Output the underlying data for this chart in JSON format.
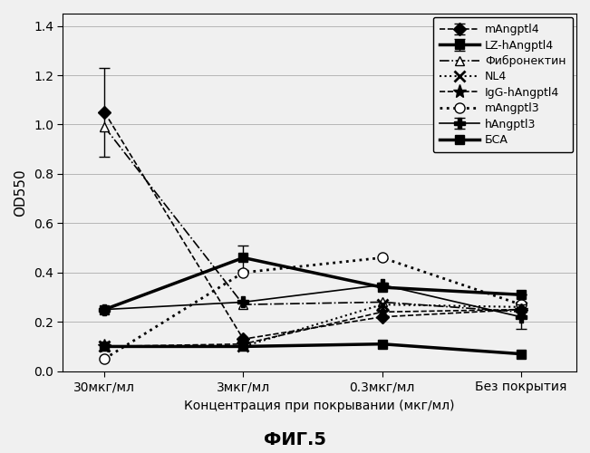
{
  "x_labels": [
    "30мкг/мл",
    "3мкг/мл",
    "0.3мкг/мл",
    "Без покрытия"
  ],
  "x_positions": [
    0,
    1,
    2,
    3
  ],
  "xlabel": "Концентрация при покрывании (мкг/мл)",
  "ylabel": "OD550",
  "title": "ФИГ.5",
  "ylim": [
    0.0,
    1.45
  ],
  "yticks": [
    0.0,
    0.2,
    0.4,
    0.6,
    0.8,
    1.0,
    1.2,
    1.4
  ],
  "series": {
    "mAngptl4": {
      "values": [
        1.05,
        0.13,
        0.22,
        0.25
      ],
      "yerr": [
        0.18,
        0.0,
        0.0,
        0.0
      ],
      "linestyle": "--",
      "linewidth": 1.2,
      "marker": "D",
      "markersize": 7,
      "markerfacecolor": "black",
      "color": "black"
    },
    "LZ-hAngptl4": {
      "values": [
        0.25,
        0.46,
        0.34,
        0.31
      ],
      "yerr": [
        0.0,
        0.05,
        0.0,
        0.0
      ],
      "linestyle": "-",
      "linewidth": 2.5,
      "marker": "s",
      "markersize": 7,
      "markerfacecolor": "black",
      "color": "black"
    },
    "Фибронектин": {
      "values": [
        0.99,
        0.27,
        0.28,
        0.24
      ],
      "yerr": [
        0.0,
        0.0,
        0.0,
        0.0
      ],
      "linestyle": "-.",
      "linewidth": 1.2,
      "marker": "^",
      "markersize": 7,
      "markerfacecolor": "white",
      "color": "black"
    },
    "NL4": {
      "values": [
        0.1,
        0.1,
        0.27,
        0.26
      ],
      "yerr": [
        0.0,
        0.0,
        0.0,
        0.0
      ],
      "linestyle": ":",
      "linewidth": 1.5,
      "marker": "x",
      "markersize": 8,
      "markerfacecolor": "black",
      "color": "black",
      "markeredgewidth": 2.0
    },
    "IgG-hAngptl4": {
      "values": [
        0.1,
        0.11,
        0.24,
        0.25
      ],
      "yerr": [
        0.0,
        0.0,
        0.0,
        0.0
      ],
      "linestyle": "--",
      "linewidth": 1.2,
      "marker": "*",
      "markersize": 11,
      "markerfacecolor": "black",
      "color": "black",
      "markeredgewidth": 1.0
    },
    "mAngptl3": {
      "values": [
        0.05,
        0.4,
        0.46,
        0.27
      ],
      "yerr": [
        0.0,
        0.0,
        0.0,
        0.0
      ],
      "linestyle": ":",
      "linewidth": 2.0,
      "marker": "o",
      "markersize": 8,
      "markerfacecolor": "white",
      "color": "black"
    },
    "hAngptl3": {
      "values": [
        0.25,
        0.28,
        0.35,
        0.22
      ],
      "yerr": [
        0.0,
        0.0,
        0.0,
        0.05
      ],
      "linestyle": "-",
      "linewidth": 1.2,
      "marker": "P",
      "markersize": 8,
      "markerfacecolor": "black",
      "color": "black"
    },
    "БСА": {
      "values": [
        0.1,
        0.1,
        0.11,
        0.07
      ],
      "yerr": [
        0.0,
        0.0,
        0.0,
        0.0
      ],
      "linestyle": "-",
      "linewidth": 2.5,
      "marker": "s",
      "markersize": 7,
      "markerfacecolor": "black",
      "color": "black"
    }
  },
  "legend_order": [
    "mAngptl4",
    "LZ-hAngptl4",
    "Фибронектин",
    "NL4",
    "IgG-hAngptl4",
    "mAngptl3",
    "hAngptl3",
    "БСА"
  ],
  "figsize": [
    6.51,
    5.0
  ],
  "dpi": 100,
  "bg_color": "#f0f0f0"
}
